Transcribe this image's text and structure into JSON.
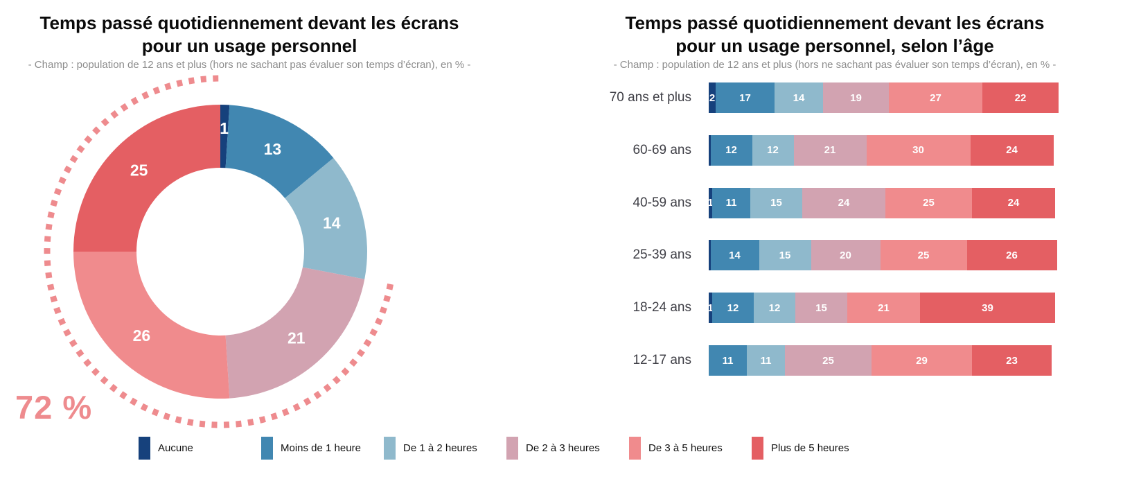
{
  "page": {
    "background": "#ffffff"
  },
  "left_chart": {
    "title_line1": "Temps passé quotidiennement devant les écrans",
    "title_line2": "pour un usage personnel",
    "subtitle": "- Champ : population de 12 ans et plus (hors ne sachant pas évaluer son temps d’écran), en % -",
    "annotation": {
      "text": "72 %",
      "color": "#ee8b8e",
      "arc_percent": 72
    }
  },
  "right_chart": {
    "title_line1": "Temps passé quotidiennement devant les écrans",
    "title_line2": "pour un usage personnel, selon l’âge",
    "subtitle": "- Champ : population de 12 ans et plus (hors ne sachant pas évaluer son temps d’écran), en % -"
  },
  "legend": {
    "items": [
      {
        "label": "Aucune",
        "color": "#16417c"
      },
      {
        "label": "Moins de 1 heure",
        "color": "#4187b1"
      },
      {
        "label": "De 1 à 2 heures",
        "color": "#8fb9cc"
      },
      {
        "label": "De 2 à 3 heures",
        "color": "#d2a3b1"
      },
      {
        "label": "De 3 à 5 heures",
        "color": "#f08b8d"
      },
      {
        "label": "Plus de 5 heures",
        "color": "#e45f63"
      }
    ]
  },
  "chart_data": [
    {
      "type": "pie",
      "variant": "donut",
      "title": "Temps passé quotidiennement devant les écrans pour un usage personnel",
      "subtitle": "- Champ : population de 12 ans et plus (hors ne sachant pas évaluer son temps d’écran), en % -",
      "categories": [
        "Aucune",
        "Moins de 1 heure",
        "De 1 à 2 heures",
        "De 2 à 3 heures",
        "De 3 à 5 heures",
        "Plus de 5 heures"
      ],
      "values": [
        1,
        13,
        14,
        21,
        26,
        25
      ],
      "colors": [
        "#16417c",
        "#4187b1",
        "#8fb9cc",
        "#d2a3b1",
        "#f08b8d",
        "#e45f63"
      ],
      "start_angle": "12-oclock",
      "direction": "clockwise",
      "value_labels": "white, inside ring",
      "annotation": {
        "text": "72 %",
        "arc_percent": 72,
        "covers_categories": [
          "De 2 à 3 heures",
          "De 3 à 5 heures",
          "Plus de 5 heures"
        ],
        "style": "dotted pink arc around donut, from start of 'De 2 à 3 heures' clockwise to top"
      }
    },
    {
      "type": "bar",
      "variant": "horizontal-stacked",
      "title": "Temps passé quotidiennement devant les écrans pour un usage personnel, selon l’âge",
      "subtitle": "- Champ : population de 12 ans et plus (hors ne sachant pas évaluer son temps d’écran), en % -",
      "categories": [
        "70 ans et plus",
        "60-69 ans",
        "40-59 ans",
        "25-39 ans",
        "18-24 ans",
        "12-17 ans"
      ],
      "series": [
        {
          "name": "Aucune",
          "color": "#16417c",
          "values": [
            2,
            0.5,
            1,
            0.5,
            1,
            0
          ]
        },
        {
          "name": "Moins de 1 heure",
          "color": "#4187b1",
          "values": [
            17,
            12,
            11,
            14,
            12,
            11
          ]
        },
        {
          "name": "De 1 à 2 heures",
          "color": "#8fb9cc",
          "values": [
            14,
            12,
            15,
            15,
            12,
            11
          ]
        },
        {
          "name": "De 2 à 3 heures",
          "color": "#d2a3b1",
          "values": [
            19,
            21,
            24,
            20,
            15,
            25
          ]
        },
        {
          "name": "De 3 à 5 heures",
          "color": "#f08b8d",
          "values": [
            27,
            30,
            25,
            25,
            21,
            29
          ]
        },
        {
          "name": "Plus de 5 heures",
          "color": "#e45f63",
          "values": [
            22,
            24,
            24,
            26,
            39,
            23
          ]
        }
      ],
      "xlim": [
        0,
        100
      ],
      "grid": false,
      "value_labels": "white, centered in each segment, hidden when value < 1",
      "legend_position": "bottom, shared with donut chart"
    }
  ]
}
